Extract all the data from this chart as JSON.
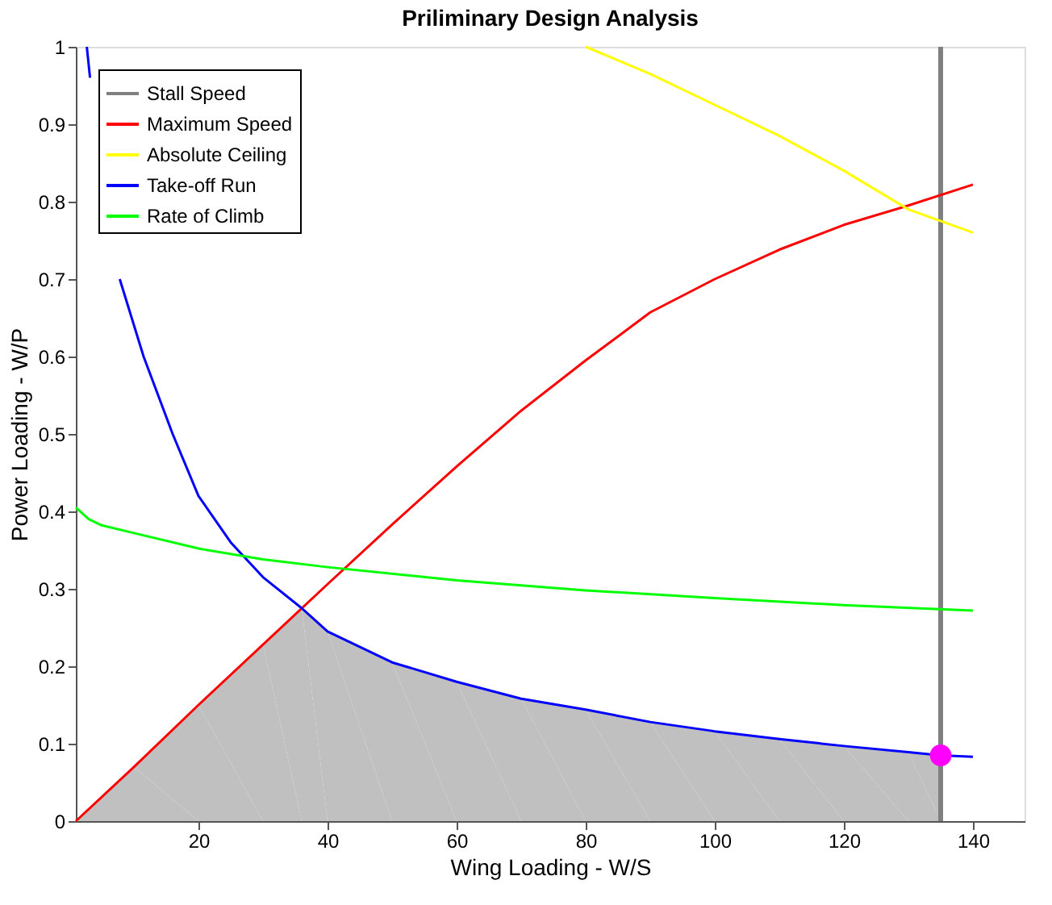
{
  "chart_data": {
    "type": "line",
    "title": "Priliminary Design Analysis",
    "xlabel": "Wing Loading - W/S",
    "ylabel": "Power Loading - W/P",
    "xlim": [
      1,
      148
    ],
    "ylim": [
      0,
      1
    ],
    "xticks": [
      20,
      40,
      60,
      80,
      100,
      120,
      140
    ],
    "yticks": [
      0,
      0.1,
      0.2,
      0.3,
      0.4,
      0.5,
      0.6,
      0.7,
      0.8,
      0.9,
      1
    ],
    "grid": false,
    "legend": "top left",
    "line_style": "solid",
    "series": [
      {
        "type": "area",
        "color": "#c0c0c0",
        "x": [
          1,
          10,
          20,
          30,
          36,
          40,
          50,
          60,
          70,
          80,
          90,
          100,
          110,
          120,
          130,
          135
        ],
        "values": [
          0,
          0.07,
          0.15,
          0.228,
          0.275,
          0.245,
          0.205,
          0.18,
          0.158,
          0.144,
          0.128,
          0.116,
          0.106,
          0.097,
          0.089,
          0.085
        ]
      },
      {
        "name": "Stall Speed",
        "color": "#808080",
        "x": [
          135,
          135
        ],
        "values": [
          0,
          1
        ]
      },
      {
        "name": "Maximum Speed",
        "color": "#ff0000",
        "x": [
          1,
          10,
          20,
          30,
          40,
          50,
          60,
          70,
          80,
          90,
          100,
          110,
          120,
          130,
          140
        ],
        "values": [
          0,
          0.07,
          0.15,
          0.228,
          0.306,
          0.383,
          0.458,
          0.53,
          0.595,
          0.657,
          0.7,
          0.738,
          0.77,
          0.795,
          0.822
        ]
      },
      {
        "name": "Absolute Ceiling",
        "color": "#ffff00",
        "x": [
          80,
          90,
          100,
          110,
          120,
          130,
          140
        ],
        "values": [
          1,
          0.965,
          0.925,
          0.885,
          0.84,
          0.79,
          0.76
        ]
      },
      {
        "name": "Take-off Run",
        "color": "#0000ff",
        "x": [
          2.7,
          3.2,
          4.6,
          6,
          7.8,
          11.5,
          16,
          20,
          25,
          30,
          36,
          40,
          50,
          60,
          70,
          80,
          90,
          100,
          110,
          120,
          130,
          135,
          140
        ],
        "values": [
          1,
          0.96,
          null,
          null,
          0.7,
          0.6,
          0.5,
          0.42,
          0.36,
          0.315,
          0.275,
          0.245,
          0.205,
          0.18,
          0.158,
          0.144,
          0.128,
          0.116,
          0.106,
          0.097,
          0.089,
          0.085,
          0.083
        ]
      },
      {
        "name": "Rate of Climb",
        "color": "#00ff00",
        "x": [
          1,
          3,
          5,
          10,
          20,
          30,
          40,
          60,
          80,
          100,
          120,
          140
        ],
        "values": [
          0.405,
          0.39,
          0.382,
          0.372,
          0.352,
          0.338,
          0.328,
          0.311,
          0.298,
          0.288,
          0.279,
          0.272
        ]
      },
      {
        "type": "scatter",
        "color": "#ff00ff",
        "marker": "circle",
        "x": [
          135
        ],
        "values": [
          0.085
        ]
      }
    ]
  }
}
